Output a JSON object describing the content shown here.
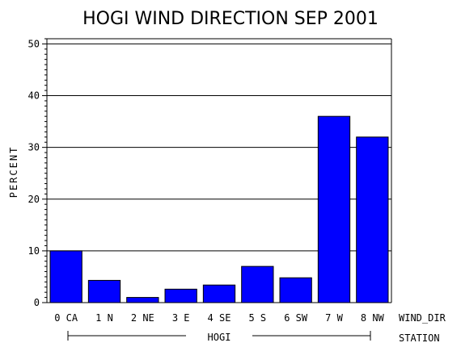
{
  "chart_data": {
    "type": "bar",
    "title": "HOGI WIND DIRECTION SEP 2001",
    "ylabel": "PERCENT",
    "xlabel": "WIND_DIR",
    "group_axis_label": "STATION",
    "group_label": "HOGI",
    "categories": [
      "0 CA",
      "1 N",
      "2 NE",
      "3 E",
      "4 SE",
      "5 S",
      "6 SW",
      "7 W",
      "8 NW"
    ],
    "values": [
      10,
      4.3,
      1.0,
      2.6,
      3.4,
      7.0,
      4.8,
      36,
      32
    ],
    "ylim": [
      0,
      51
    ],
    "yticks": [
      "0",
      "10",
      "20",
      "30",
      "40",
      "50"
    ],
    "grid": true,
    "bar_color": "#0000ff"
  }
}
